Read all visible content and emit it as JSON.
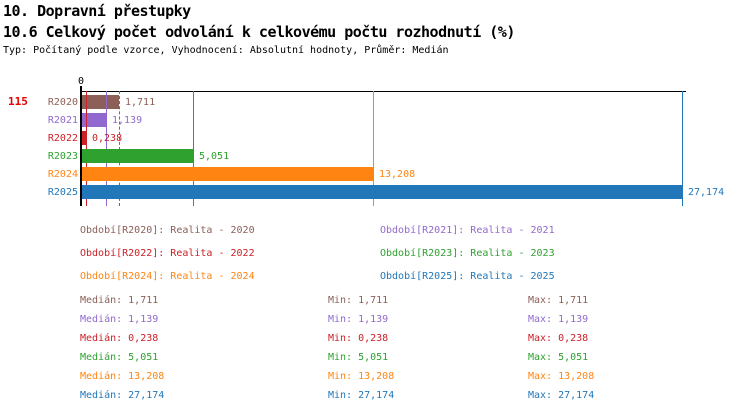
{
  "header": {
    "title_line1": "10. Dopravní přestupky",
    "title_line2": "10.6 Celkový počet odvolání k celkovému počtu rozhodnutí (%)",
    "meta": "Typ: Počítaný podle vzorce, Vyhodnocení: Absolutní hodnoty, Průměr: Medián"
  },
  "indicator_number": "115",
  "colors": {
    "brown": "#8C5F58",
    "purple": "#9169CE",
    "red": "#CC2127",
    "green": "#2EA12F",
    "orange": "#FF8412",
    "blue": "#2277B9",
    "indicator_red": "#E60000",
    "axis": "#000000"
  },
  "chart": {
    "zero_label": "0",
    "rows": [
      {
        "label": "R2020",
        "value": 1.711,
        "value_label": "1,711",
        "color_key": "brown",
        "line_style": "dashed"
      },
      {
        "label": "R2021",
        "value": 1.139,
        "value_label": "1,139",
        "color_key": "purple",
        "line_style": "solid"
      },
      {
        "label": "R2022",
        "value": 0.238,
        "value_label": "0,238",
        "color_key": "red",
        "line_style": "solid"
      },
      {
        "label": "R2023",
        "value": 5.051,
        "value_label": "5,051",
        "color_key": "green",
        "line_style": "solid"
      },
      {
        "label": "R2024",
        "value": 13.208,
        "value_label": "13,208",
        "color_key": "orange",
        "line_style": "solid"
      },
      {
        "label": "R2025",
        "value": 27.174,
        "value_label": "27,174",
        "color_key": "blue",
        "line_style": "solid"
      }
    ]
  },
  "chart_data": {
    "type": "bar",
    "orientation": "horizontal",
    "title": "10.6 Celkový počet odvolání k celkovému počtu rozhodnutí (%)",
    "categories": [
      "R2020",
      "R2021",
      "R2022",
      "R2023",
      "R2024",
      "R2025"
    ],
    "values": [
      1.711,
      1.139,
      0.238,
      5.051,
      13.208,
      27.174
    ],
    "value_labels": [
      "1,711",
      "1,139",
      "0,238",
      "5,051",
      "13,208",
      "27,174"
    ],
    "bar_colors": [
      "#8C5F58",
      "#9169CE",
      "#CC2127",
      "#2EA12F",
      "#FF8412",
      "#2277B9"
    ],
    "xlim": [
      0,
      27.4
    ],
    "x_tick_labels": [
      "0"
    ],
    "grid": false,
    "legend_position": "below-chart-two-columns",
    "annotations": "vertical marker line at each bar end (min=max=median per series)"
  },
  "legend": {
    "items": [
      {
        "label": "Období[R2020]: Realita - 2020",
        "color_key": "brown",
        "col": 0,
        "row": 0
      },
      {
        "label": "Období[R2021]: Realita - 2021",
        "color_key": "purple",
        "col": 1,
        "row": 0
      },
      {
        "label": "Období[R2022]: Realita - 2022",
        "color_key": "red",
        "col": 0,
        "row": 1
      },
      {
        "label": "Období[R2023]: Realita - 2023",
        "color_key": "green",
        "col": 1,
        "row": 1
      },
      {
        "label": "Období[R2024]: Realita - 2024",
        "color_key": "orange",
        "col": 0,
        "row": 2
      },
      {
        "label": "Období[R2025]: Realita - 2025",
        "color_key": "blue",
        "col": 1,
        "row": 2
      }
    ]
  },
  "stats": {
    "median_prefix": "Medián",
    "min_prefix": "Min",
    "max_prefix": "Max",
    "rows": [
      {
        "color_key": "brown",
        "median": "1,711",
        "min": "1,711",
        "max": "1,711"
      },
      {
        "color_key": "purple",
        "median": "1,139",
        "min": "1,139",
        "max": "1,139"
      },
      {
        "color_key": "red",
        "median": "0,238",
        "min": "0,238",
        "max": "0,238"
      },
      {
        "color_key": "green",
        "median": "5,051",
        "min": "5,051",
        "max": "5,051"
      },
      {
        "color_key": "orange",
        "median": "13,208",
        "min": "13,208",
        "max": "13,208"
      },
      {
        "color_key": "blue",
        "median": "27,174",
        "min": "27,174",
        "max": "27,174"
      }
    ]
  }
}
